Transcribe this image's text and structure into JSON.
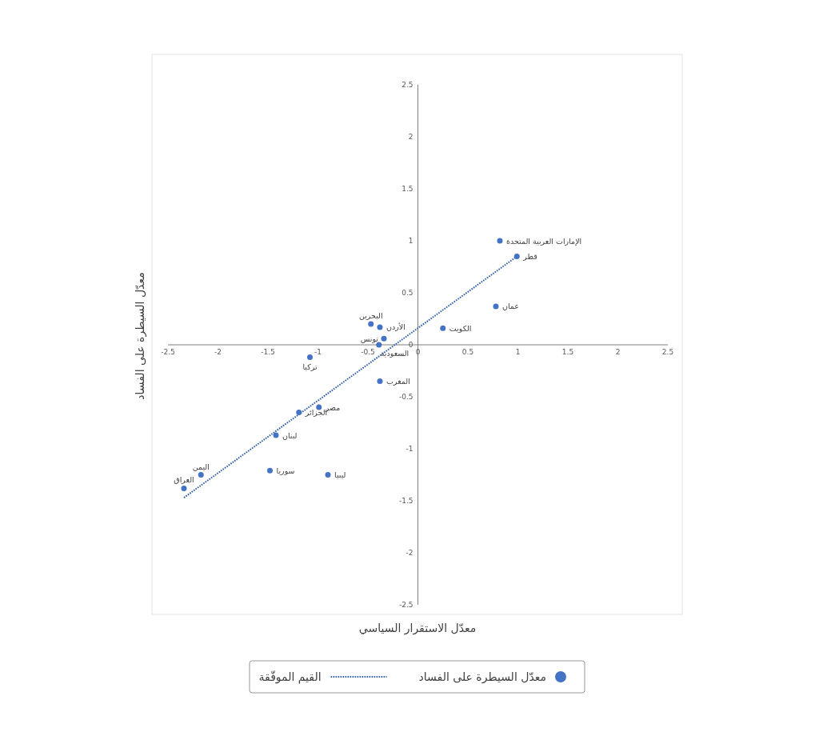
{
  "chart_data": {
    "type": "scatter",
    "xlabel": "معدّل الاستقرار السياسي",
    "ylabel": "معدّل السيطرة على الفساد",
    "xlim": [
      -2.5,
      2.5
    ],
    "ylim": [
      -2.5,
      2.5
    ],
    "xticks": [
      -2.5,
      -2,
      -1.5,
      -1,
      -0.5,
      0,
      0.5,
      1,
      1.5,
      2,
      2.5
    ],
    "yticks": [
      -2.5,
      -2,
      -1.5,
      -1,
      -0.5,
      0,
      0.5,
      1,
      1.5,
      2,
      2.5
    ],
    "grid": false,
    "legend": "bottom",
    "series": [
      {
        "name": "معدّل السيطرة على الفساد",
        "marker": "circle",
        "color": "#4472c4",
        "x": [
          0.82,
          0.99,
          0.78,
          0.25,
          -0.47,
          -0.38,
          -0.34,
          -0.39,
          -1.08,
          -0.38,
          -0.99,
          -1.19,
          -1.42,
          -1.48,
          -0.9,
          -2.17,
          -2.34
        ],
        "values": [
          1.0,
          0.85,
          0.37,
          0.16,
          0.2,
          0.17,
          0.06,
          0.0,
          -0.12,
          -0.35,
          -0.6,
          -0.65,
          -0.87,
          -1.21,
          -1.25,
          -1.25,
          -1.38
        ]
      },
      {
        "name": "القيم الموفّقة",
        "type": "line",
        "line_style": "dotted",
        "color": "#2e5fa8",
        "x": [
          -2.34,
          0.99
        ],
        "values": [
          -1.47,
          0.85
        ]
      }
    ],
    "annotations": [
      {
        "text": "الإمارات العربية المتحدة",
        "x": 0.82,
        "y": 1.0
      },
      {
        "text": "قطر",
        "x": 0.99,
        "y": 0.85
      },
      {
        "text": "عمان",
        "x": 0.78,
        "y": 0.37
      },
      {
        "text": "الكويت",
        "x": 0.25,
        "y": 0.16
      },
      {
        "text": "البحرين",
        "x": -0.47,
        "y": 0.2
      },
      {
        "text": "الأردن",
        "x": -0.38,
        "y": 0.17
      },
      {
        "text": "تونس",
        "x": -0.34,
        "y": 0.06
      },
      {
        "text": "السعودية",
        "x": -0.39,
        "y": 0.0
      },
      {
        "text": "تركيا",
        "x": -1.08,
        "y": -0.12
      },
      {
        "text": "المغرب",
        "x": -0.38,
        "y": -0.35
      },
      {
        "text": "مصر",
        "x": -0.99,
        "y": -0.6
      },
      {
        "text": "الجزائر",
        "x": -1.19,
        "y": -0.65
      },
      {
        "text": "لبنان",
        "x": -1.42,
        "y": -0.87
      },
      {
        "text": "سوريا",
        "x": -1.48,
        "y": -1.21
      },
      {
        "text": "ليبيا",
        "x": -0.9,
        "y": -1.25
      },
      {
        "text": "اليمن",
        "x": -2.17,
        "y": -1.25
      },
      {
        "text": "العراق",
        "x": -2.34,
        "y": -1.38
      }
    ]
  }
}
